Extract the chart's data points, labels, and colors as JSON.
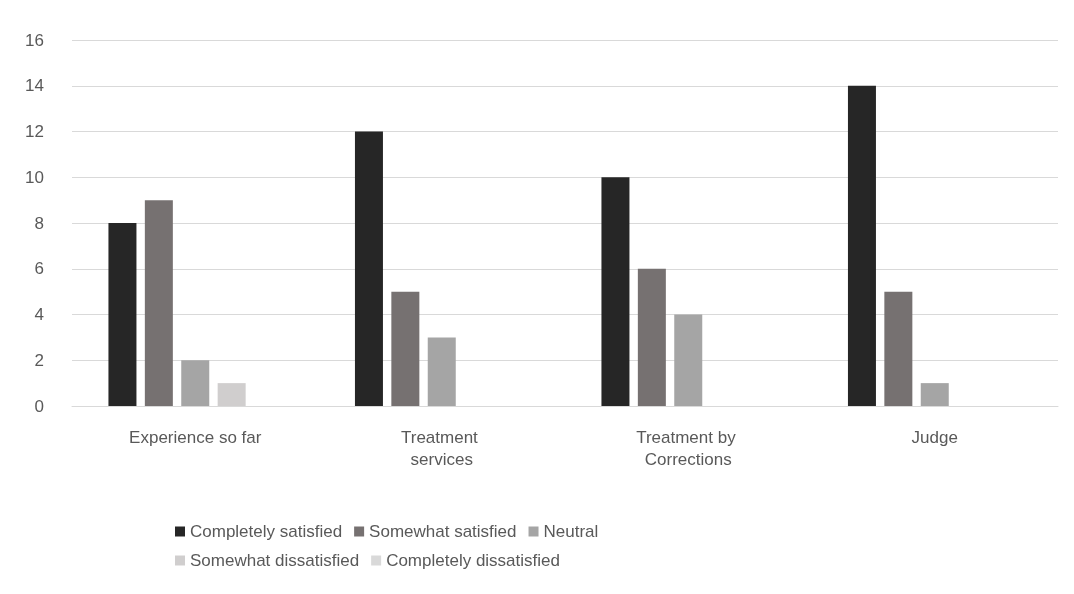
{
  "chart_data": {
    "type": "bar",
    "categories": [
      "Experience so far",
      "Treatment services",
      "Treatment by Corrections",
      "Judge"
    ],
    "series": [
      {
        "name": "Completely satisfied",
        "color": "#262626",
        "values": [
          8,
          12,
          10,
          14
        ]
      },
      {
        "name": "Somewhat satisfied",
        "color": "#767171",
        "values": [
          9,
          5,
          6,
          5
        ]
      },
      {
        "name": "Neutral",
        "color": "#a5a5a5",
        "values": [
          2,
          3,
          4,
          1
        ]
      },
      {
        "name": "Somewhat dissatisfied",
        "color": "#d0cece",
        "values": [
          1,
          0,
          0,
          0
        ]
      },
      {
        "name": "Completely dissatisfied",
        "color": "#d9d9d9",
        "values": [
          0,
          0,
          0,
          0
        ]
      }
    ],
    "ylim": [
      0,
      16
    ],
    "yticks": [
      0,
      2,
      4,
      6,
      8,
      10,
      12,
      14,
      16
    ],
    "grid": "y",
    "legend": "bottom"
  }
}
